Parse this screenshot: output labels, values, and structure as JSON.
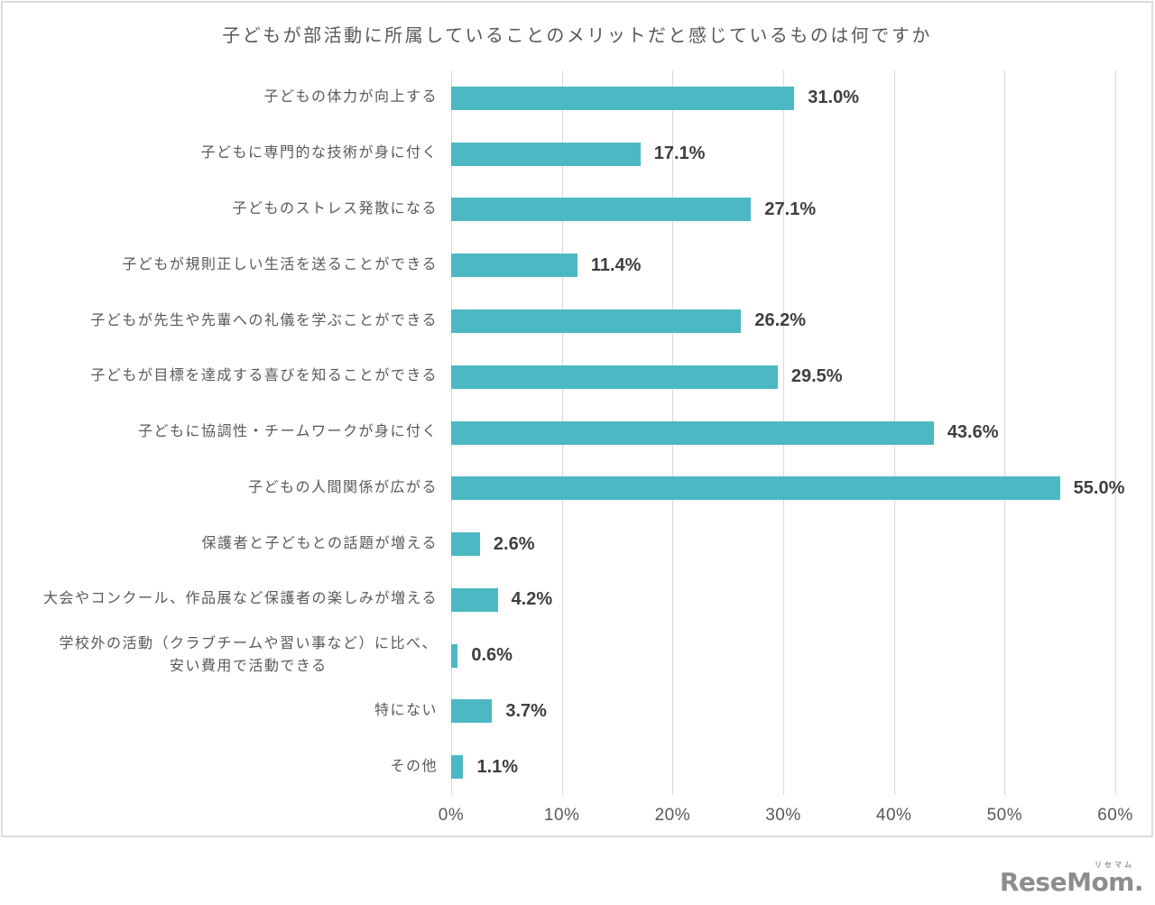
{
  "title": "子どもが部活動に所属していることのメリットだと感じているものは何ですか",
  "chart_data": {
    "type": "bar",
    "orientation": "horizontal",
    "title": "子どもが部活動に所属していることのメリットだと感じているものは何ですか",
    "categories": [
      "子どもの体力が向上する",
      "子どもに専門的な技術が身に付く",
      "子どものストレス発散になる",
      "子どもが規則正しい生活を送ることができる",
      "子どもが先生や先輩への礼儀を学ぶことができる",
      "子どもが目標を達成する喜びを知ることができる",
      "子どもに協調性・チームワークが身に付く",
      "子どもの人間関係が広がる",
      "保護者と子どもとの話題が増える",
      "大会やコンクール、作品展など保護者の楽しみが増える",
      "学校外の活動（クラブチームや習い事など）に比べ、\n安い費用で活動できる",
      "特にない",
      "その他"
    ],
    "values": [
      31.0,
      17.1,
      27.1,
      11.4,
      26.2,
      29.5,
      43.6,
      55.0,
      2.6,
      4.2,
      0.6,
      3.7,
      1.1
    ],
    "value_labels": [
      "31.0%",
      "17.1%",
      "27.1%",
      "11.4%",
      "26.2%",
      "29.5%",
      "43.6%",
      "55.0%",
      "2.6%",
      "4.2%",
      "0.6%",
      "3.7%",
      "1.1%"
    ],
    "x_ticks": [
      "0%",
      "10%",
      "20%",
      "30%",
      "40%",
      "50%",
      "60%"
    ],
    "xlim": [
      0,
      60
    ],
    "xlabel": "",
    "ylabel": "",
    "grid": true,
    "legend": false,
    "bar_color": "#4BB8C4",
    "grid_color": "#d9d9d9",
    "label_color": "#595959",
    "value_color": "#3f3f3f"
  },
  "logo": {
    "text": "ReseMom.",
    "furigana": "リセマム"
  }
}
